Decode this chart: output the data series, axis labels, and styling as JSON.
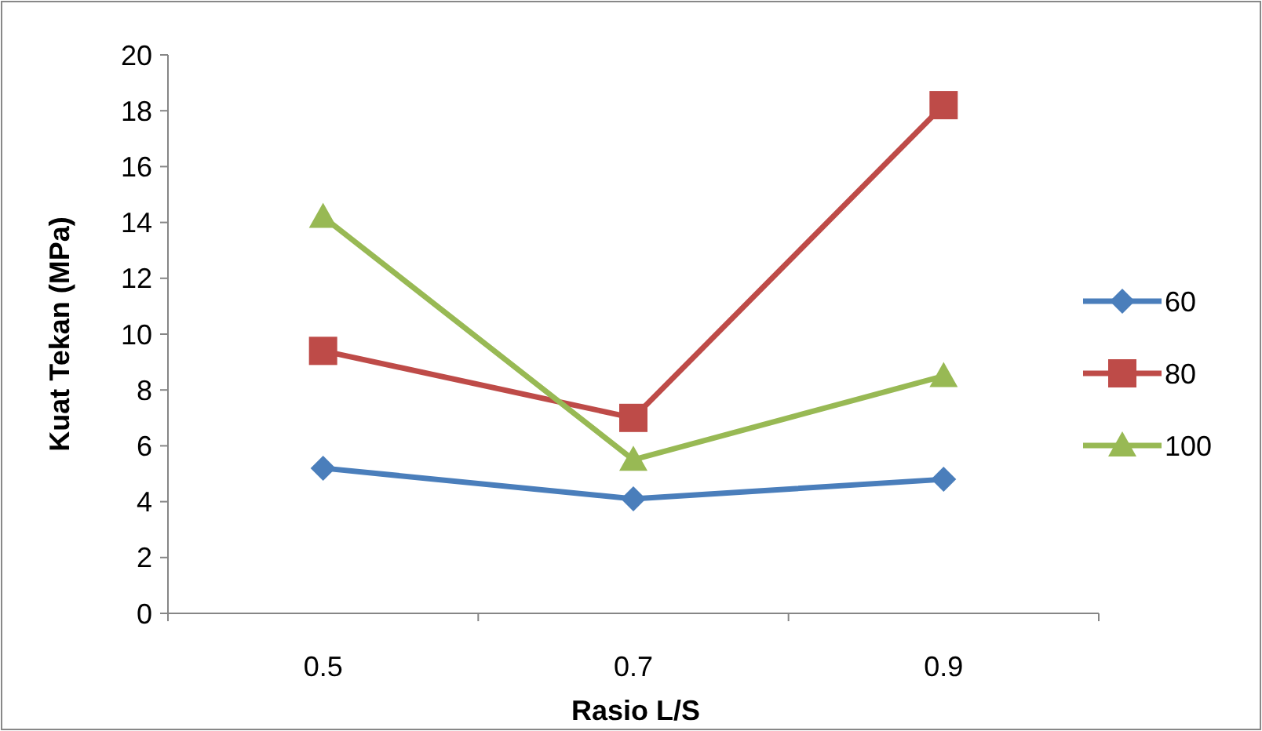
{
  "chart_data": {
    "type": "line",
    "xlabel": "Rasio L/S",
    "ylabel": "Kuat Tekan (MPa)",
    "categories": [
      "0.5",
      "0.7",
      "0.9"
    ],
    "ylim": [
      0,
      20
    ],
    "yticks": [
      0,
      2,
      4,
      6,
      8,
      10,
      12,
      14,
      16,
      18,
      20
    ],
    "grid": false,
    "legend": "right",
    "series": [
      {
        "name": "60",
        "color": "#4a7ebb",
        "marker": "diamond",
        "values": [
          5.2,
          4.1,
          4.8
        ]
      },
      {
        "name": "80",
        "color": "#be4b48",
        "marker": "square",
        "values": [
          9.4,
          7.0,
          18.2
        ]
      },
      {
        "name": "100",
        "color": "#98b954",
        "marker": "triangle",
        "values": [
          14.2,
          5.5,
          8.5
        ]
      }
    ]
  }
}
